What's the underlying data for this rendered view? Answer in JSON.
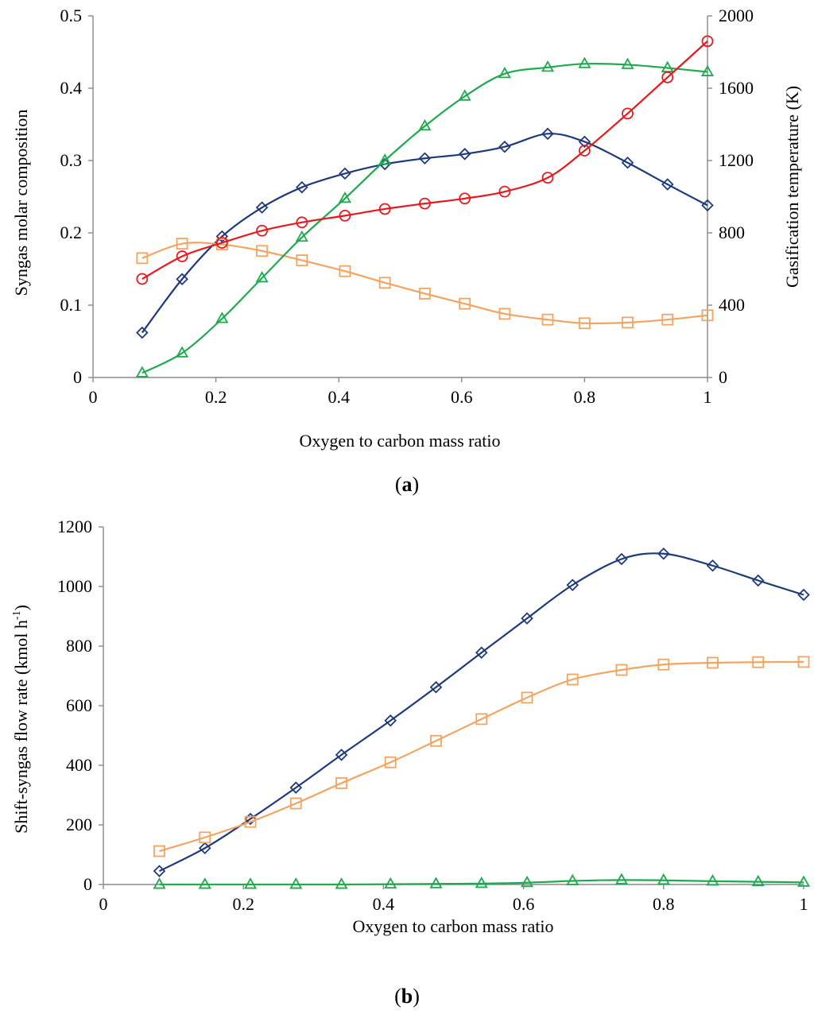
{
  "chart_data": [
    {
      "type": "line",
      "panel_label": "a",
      "xlabel": "Oxygen to carbon mass ratio",
      "ylabel": "Syngas molar composition",
      "ylabel_right": "Gasification temperature (K)",
      "xlim": [
        0,
        1
      ],
      "ylim": [
        0,
        0.5
      ],
      "ylim_right": [
        0,
        2000
      ],
      "xticks": [
        "0",
        "0.2",
        "0.4",
        "0.6",
        "0.8",
        "1"
      ],
      "yticks": [
        "0",
        "0.1",
        "0.2",
        "0.3",
        "0.4",
        "0.5"
      ],
      "yticks_right": [
        "0",
        "400",
        "800",
        "1200",
        "1600",
        "2000"
      ],
      "grid": false,
      "series": [
        {
          "color": "#1f3a7a",
          "marker": "diamond",
          "axis": "left",
          "x": [
            0.08,
            0.145,
            0.21,
            0.275,
            0.34,
            0.41,
            0.475,
            0.54,
            0.605,
            0.67,
            0.74,
            0.8,
            0.87,
            0.935,
            1.0
          ],
          "y": [
            0.062,
            0.136,
            0.195,
            0.235,
            0.263,
            0.282,
            0.295,
            0.303,
            0.309,
            0.319,
            0.337,
            0.326,
            0.297,
            0.267,
            0.238
          ]
        },
        {
          "color": "#f4a460",
          "marker": "square",
          "axis": "left",
          "x": [
            0.08,
            0.145,
            0.21,
            0.275,
            0.34,
            0.41,
            0.475,
            0.54,
            0.605,
            0.67,
            0.74,
            0.8,
            0.87,
            0.935,
            1.0
          ],
          "y": [
            0.165,
            0.185,
            0.184,
            0.175,
            0.162,
            0.147,
            0.131,
            0.116,
            0.102,
            0.088,
            0.08,
            0.075,
            0.076,
            0.08,
            0.086
          ]
        },
        {
          "color": "#1faa50",
          "marker": "triangle",
          "axis": "right",
          "x": [
            0.08,
            0.145,
            0.21,
            0.275,
            0.34,
            0.41,
            0.475,
            0.54,
            0.605,
            0.67,
            0.74,
            0.8,
            0.87,
            0.935,
            1.0
          ],
          "y": [
            25,
            135,
            325,
            550,
            775,
            990,
            1200,
            1390,
            1555,
            1680,
            1715,
            1735,
            1730,
            1712,
            1690
          ]
        },
        {
          "color": "#e8191c",
          "marker": "circle",
          "axis": "right",
          "x": [
            0.08,
            0.145,
            0.21,
            0.275,
            0.34,
            0.41,
            0.475,
            0.54,
            0.605,
            0.67,
            0.74,
            0.8,
            0.87,
            0.935,
            1.0
          ],
          "y": [
            545,
            670,
            745,
            812,
            858,
            895,
            932,
            962,
            990,
            1028,
            1105,
            1255,
            1460,
            1660,
            1860
          ]
        }
      ]
    },
    {
      "type": "line",
      "panel_label": "b",
      "xlabel": "Oxygen to carbon mass ratio",
      "ylabel": "Shift-syngas flow rate  (kmol h",
      "ylabel_sup": "-1",
      "ylabel_end": ")",
      "xlim": [
        0,
        1
      ],
      "ylim": [
        0,
        1200
      ],
      "xticks": [
        "0",
        "0.2",
        "0.4",
        "0.6",
        "0.8",
        "1"
      ],
      "yticks": [
        "0",
        "200",
        "400",
        "600",
        "800",
        "1000",
        "1200"
      ],
      "grid": false,
      "series": [
        {
          "color": "#1f3a7a",
          "marker": "diamond",
          "x": [
            0.08,
            0.145,
            0.21,
            0.275,
            0.34,
            0.41,
            0.475,
            0.54,
            0.605,
            0.67,
            0.74,
            0.8,
            0.87,
            0.935,
            1.0
          ],
          "y": [
            45,
            122,
            220,
            325,
            435,
            550,
            662,
            778,
            893,
            1005,
            1092,
            1110,
            1070,
            1020,
            972
          ]
        },
        {
          "color": "#f4a460",
          "marker": "square",
          "x": [
            0.08,
            0.145,
            0.21,
            0.275,
            0.34,
            0.41,
            0.475,
            0.54,
            0.605,
            0.67,
            0.74,
            0.8,
            0.87,
            0.935,
            1.0
          ],
          "y": [
            112,
            158,
            210,
            272,
            340,
            410,
            482,
            555,
            627,
            688,
            720,
            738,
            744,
            746,
            747
          ]
        },
        {
          "color": "#1faa50",
          "marker": "triangle",
          "x": [
            0.08,
            0.145,
            0.21,
            0.275,
            0.34,
            0.41,
            0.475,
            0.54,
            0.605,
            0.67,
            0.74,
            0.8,
            0.87,
            0.935,
            1.0
          ],
          "y": [
            0,
            0,
            0,
            0,
            0,
            1,
            2,
            3,
            6,
            12,
            15,
            14,
            11,
            9,
            7
          ]
        }
      ]
    }
  ]
}
